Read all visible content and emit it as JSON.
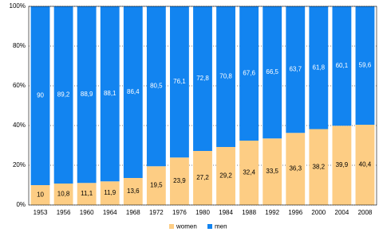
{
  "chart_data": {
    "type": "stacked_bar",
    "categories": [
      "1953",
      "1956",
      "1960",
      "1964",
      "1968",
      "1972",
      "1976",
      "1980",
      "1984",
      "1988",
      "1992",
      "1996",
      "2000",
      "2004",
      "2008"
    ],
    "series": [
      {
        "name": "women",
        "color": "#fdcd84",
        "values": [
          10,
          10.8,
          11.1,
          11.9,
          13.6,
          19.5,
          23.9,
          27.2,
          29.2,
          32.4,
          33.5,
          36.3,
          38.2,
          39.9,
          40.4
        ],
        "value_labels": [
          "10",
          "10,8",
          "11,1",
          "11,9",
          "13,6",
          "19,5",
          "23,9",
          "27,2",
          "29,2",
          "32,4",
          "33,5",
          "36,3",
          "38,2",
          "39,9",
          "40,4"
        ]
      },
      {
        "name": "men",
        "color": "#1284f0",
        "values": [
          90,
          89.2,
          88.9,
          88.1,
          86.4,
          80.5,
          76.1,
          72.8,
          70.8,
          67.6,
          66.5,
          63.7,
          61.8,
          60.1,
          59.6
        ],
        "value_labels": [
          "90",
          "89,2",
          "88,9",
          "88,1",
          "86,4",
          "80,5",
          "76,1",
          "72,8",
          "70,8",
          "67,6",
          "66,5",
          "63,7",
          "61,8",
          "60,1",
          "59,6"
        ]
      }
    ],
    "ylim": [
      0,
      100
    ],
    "yticks": [
      {
        "value": 0,
        "label": "0%"
      },
      {
        "value": 20,
        "label": "20%"
      },
      {
        "value": 40,
        "label": "40%"
      },
      {
        "value": 60,
        "label": "60%"
      },
      {
        "value": 80,
        "label": "80%"
      },
      {
        "value": 100,
        "label": "100%"
      }
    ],
    "grid": true,
    "legend": "bottom"
  }
}
